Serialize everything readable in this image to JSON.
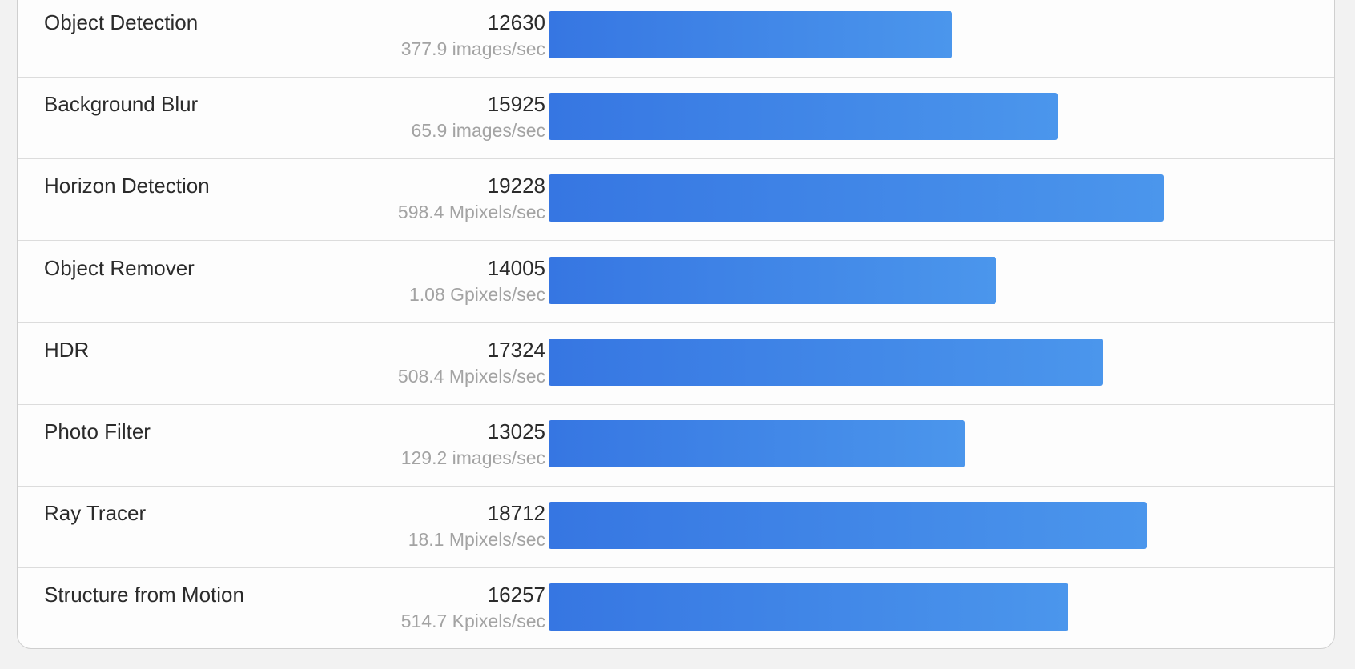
{
  "rows": [
    {
      "name": "Object Detection",
      "score": 12630,
      "rate": "377.9 images/sec"
    },
    {
      "name": "Background Blur",
      "score": 15925,
      "rate": "65.9 images/sec"
    },
    {
      "name": "Horizon Detection",
      "score": 19228,
      "rate": "598.4 Mpixels/sec"
    },
    {
      "name": "Object Remover",
      "score": 14005,
      "rate": "1.08 Gpixels/sec"
    },
    {
      "name": "HDR",
      "score": 17324,
      "rate": "508.4 Mpixels/sec"
    },
    {
      "name": "Photo Filter",
      "score": 13025,
      "rate": "129.2 images/sec"
    },
    {
      "name": "Ray Tracer",
      "score": 18712,
      "rate": "18.1 Mpixels/sec"
    },
    {
      "name": "Structure from Motion",
      "score": 16257,
      "rate": "514.7 Kpixels/sec"
    }
  ]
}
